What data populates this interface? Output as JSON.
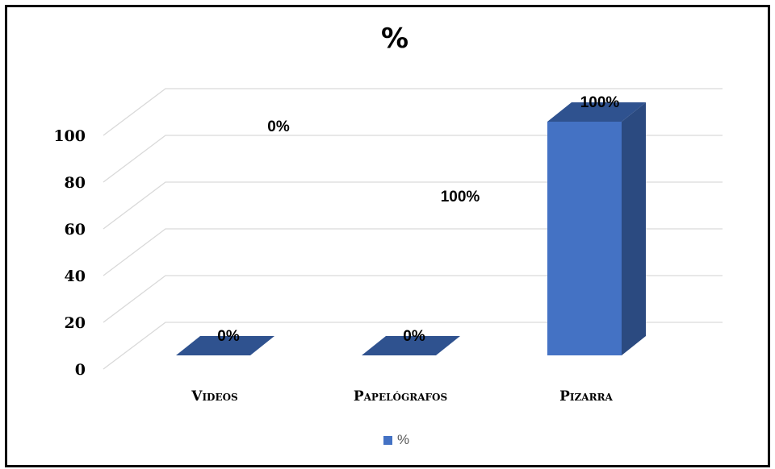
{
  "chart_data": {
    "type": "bar",
    "title": "%",
    "categories": [
      "Videos",
      "Papelógrafos",
      "Pizarra"
    ],
    "series": [
      {
        "name": "%",
        "values": [
          0,
          0,
          100
        ]
      }
    ],
    "data_labels": [
      "0%",
      "0%",
      "100%"
    ],
    "floating_labels": [
      "0%",
      "100%"
    ],
    "yticks": [
      "0",
      "20",
      "40",
      "60",
      "80",
      "100"
    ],
    "ylim": [
      0,
      100
    ],
    "grid": true,
    "legend": "bottom",
    "colors": {
      "bar_front": "#4472c4",
      "bar_top": "#2f528f",
      "bar_side": "#2b4a80",
      "grid": "#d9d9d9"
    }
  }
}
